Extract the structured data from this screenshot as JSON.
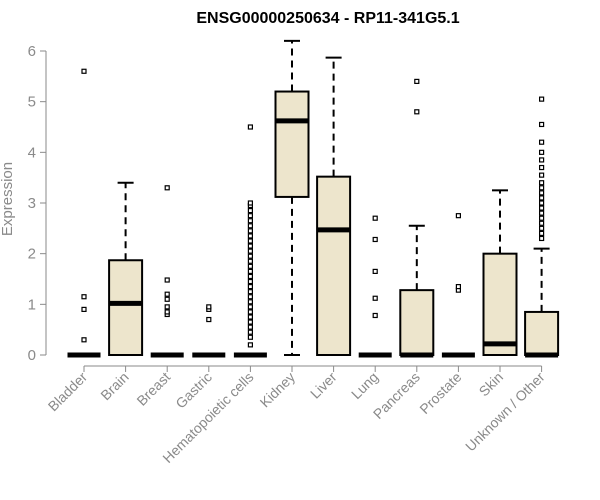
{
  "chart_data": {
    "type": "box",
    "title": "ENSG00000250634 - RP11-341G5.1",
    "ylabel": "Expression",
    "xlabel": "",
    "ylim": [
      0,
      6
    ],
    "yticks": [
      0,
      1,
      2,
      3,
      4,
      5,
      6
    ],
    "box_fill": "#ede5cc",
    "categories": [
      "Bladder",
      "Brain",
      "Breast",
      "Gastric",
      "Hematopoietic cells",
      "Kidney",
      "Liver",
      "Lung",
      "Pancreas",
      "Prostate",
      "Skin",
      "Unknown / Other"
    ],
    "boxes": [
      {
        "q1": 0,
        "median": 0,
        "q3": 0,
        "whisker_low": 0,
        "whisker_high": 0,
        "outliers": [
          0.3,
          0.9,
          1.15,
          5.6
        ]
      },
      {
        "q1": 0,
        "median": 1.02,
        "q3": 1.87,
        "whisker_low": 0,
        "whisker_high": 3.4,
        "outliers": []
      },
      {
        "q1": 0,
        "median": 0,
        "q3": 0,
        "whisker_low": 0,
        "whisker_high": 0,
        "outliers": [
          0.8,
          0.85,
          0.95,
          1.1,
          1.2,
          1.48,
          3.3
        ]
      },
      {
        "q1": 0,
        "median": 0,
        "q3": 0,
        "whisker_low": 0,
        "whisker_high": 0,
        "outliers": [
          0.7,
          0.9,
          0.95
        ]
      },
      {
        "q1": 0,
        "median": 0,
        "q3": 0,
        "whisker_low": 0,
        "whisker_high": 0,
        "outliers": [
          0.2,
          0.35,
          0.45,
          0.55,
          0.65,
          0.75,
          0.85,
          0.95,
          1.05,
          1.15,
          1.25,
          1.35,
          1.45,
          1.55,
          1.65,
          1.75,
          1.85,
          1.95,
          2.05,
          2.15,
          2.25,
          2.35,
          2.45,
          2.55,
          2.65,
          2.75,
          2.85,
          2.95,
          3.0,
          4.5
        ]
      },
      {
        "q1": 3.12,
        "median": 4.62,
        "q3": 5.2,
        "whisker_low": 0,
        "whisker_high": 6.2,
        "outliers": []
      },
      {
        "q1": 0,
        "median": 2.47,
        "q3": 3.52,
        "whisker_low": 0,
        "whisker_high": 5.87,
        "outliers": []
      },
      {
        "q1": 0,
        "median": 0,
        "q3": 0,
        "whisker_low": 0,
        "whisker_high": 0,
        "outliers": [
          0.78,
          1.12,
          1.65,
          2.28,
          2.7
        ]
      },
      {
        "q1": 0,
        "median": 0,
        "q3": 1.28,
        "whisker_low": 0,
        "whisker_high": 2.55,
        "outliers": [
          4.8,
          5.4
        ]
      },
      {
        "q1": 0,
        "median": 0,
        "q3": 0,
        "whisker_low": 0,
        "whisker_high": 0,
        "outliers": [
          1.28,
          1.35,
          2.75
        ]
      },
      {
        "q1": 0,
        "median": 0.22,
        "q3": 2.0,
        "whisker_low": 0,
        "whisker_high": 3.25,
        "outliers": []
      },
      {
        "q1": 0,
        "median": 0,
        "q3": 0.85,
        "whisker_low": 0,
        "whisker_high": 2.1,
        "outliers": [
          2.3,
          2.4,
          2.5,
          2.6,
          2.7,
          2.8,
          2.9,
          3.0,
          3.1,
          3.2,
          3.3,
          3.4,
          3.55,
          3.7,
          3.85,
          4.0,
          4.2,
          4.55,
          5.05
        ]
      }
    ]
  }
}
